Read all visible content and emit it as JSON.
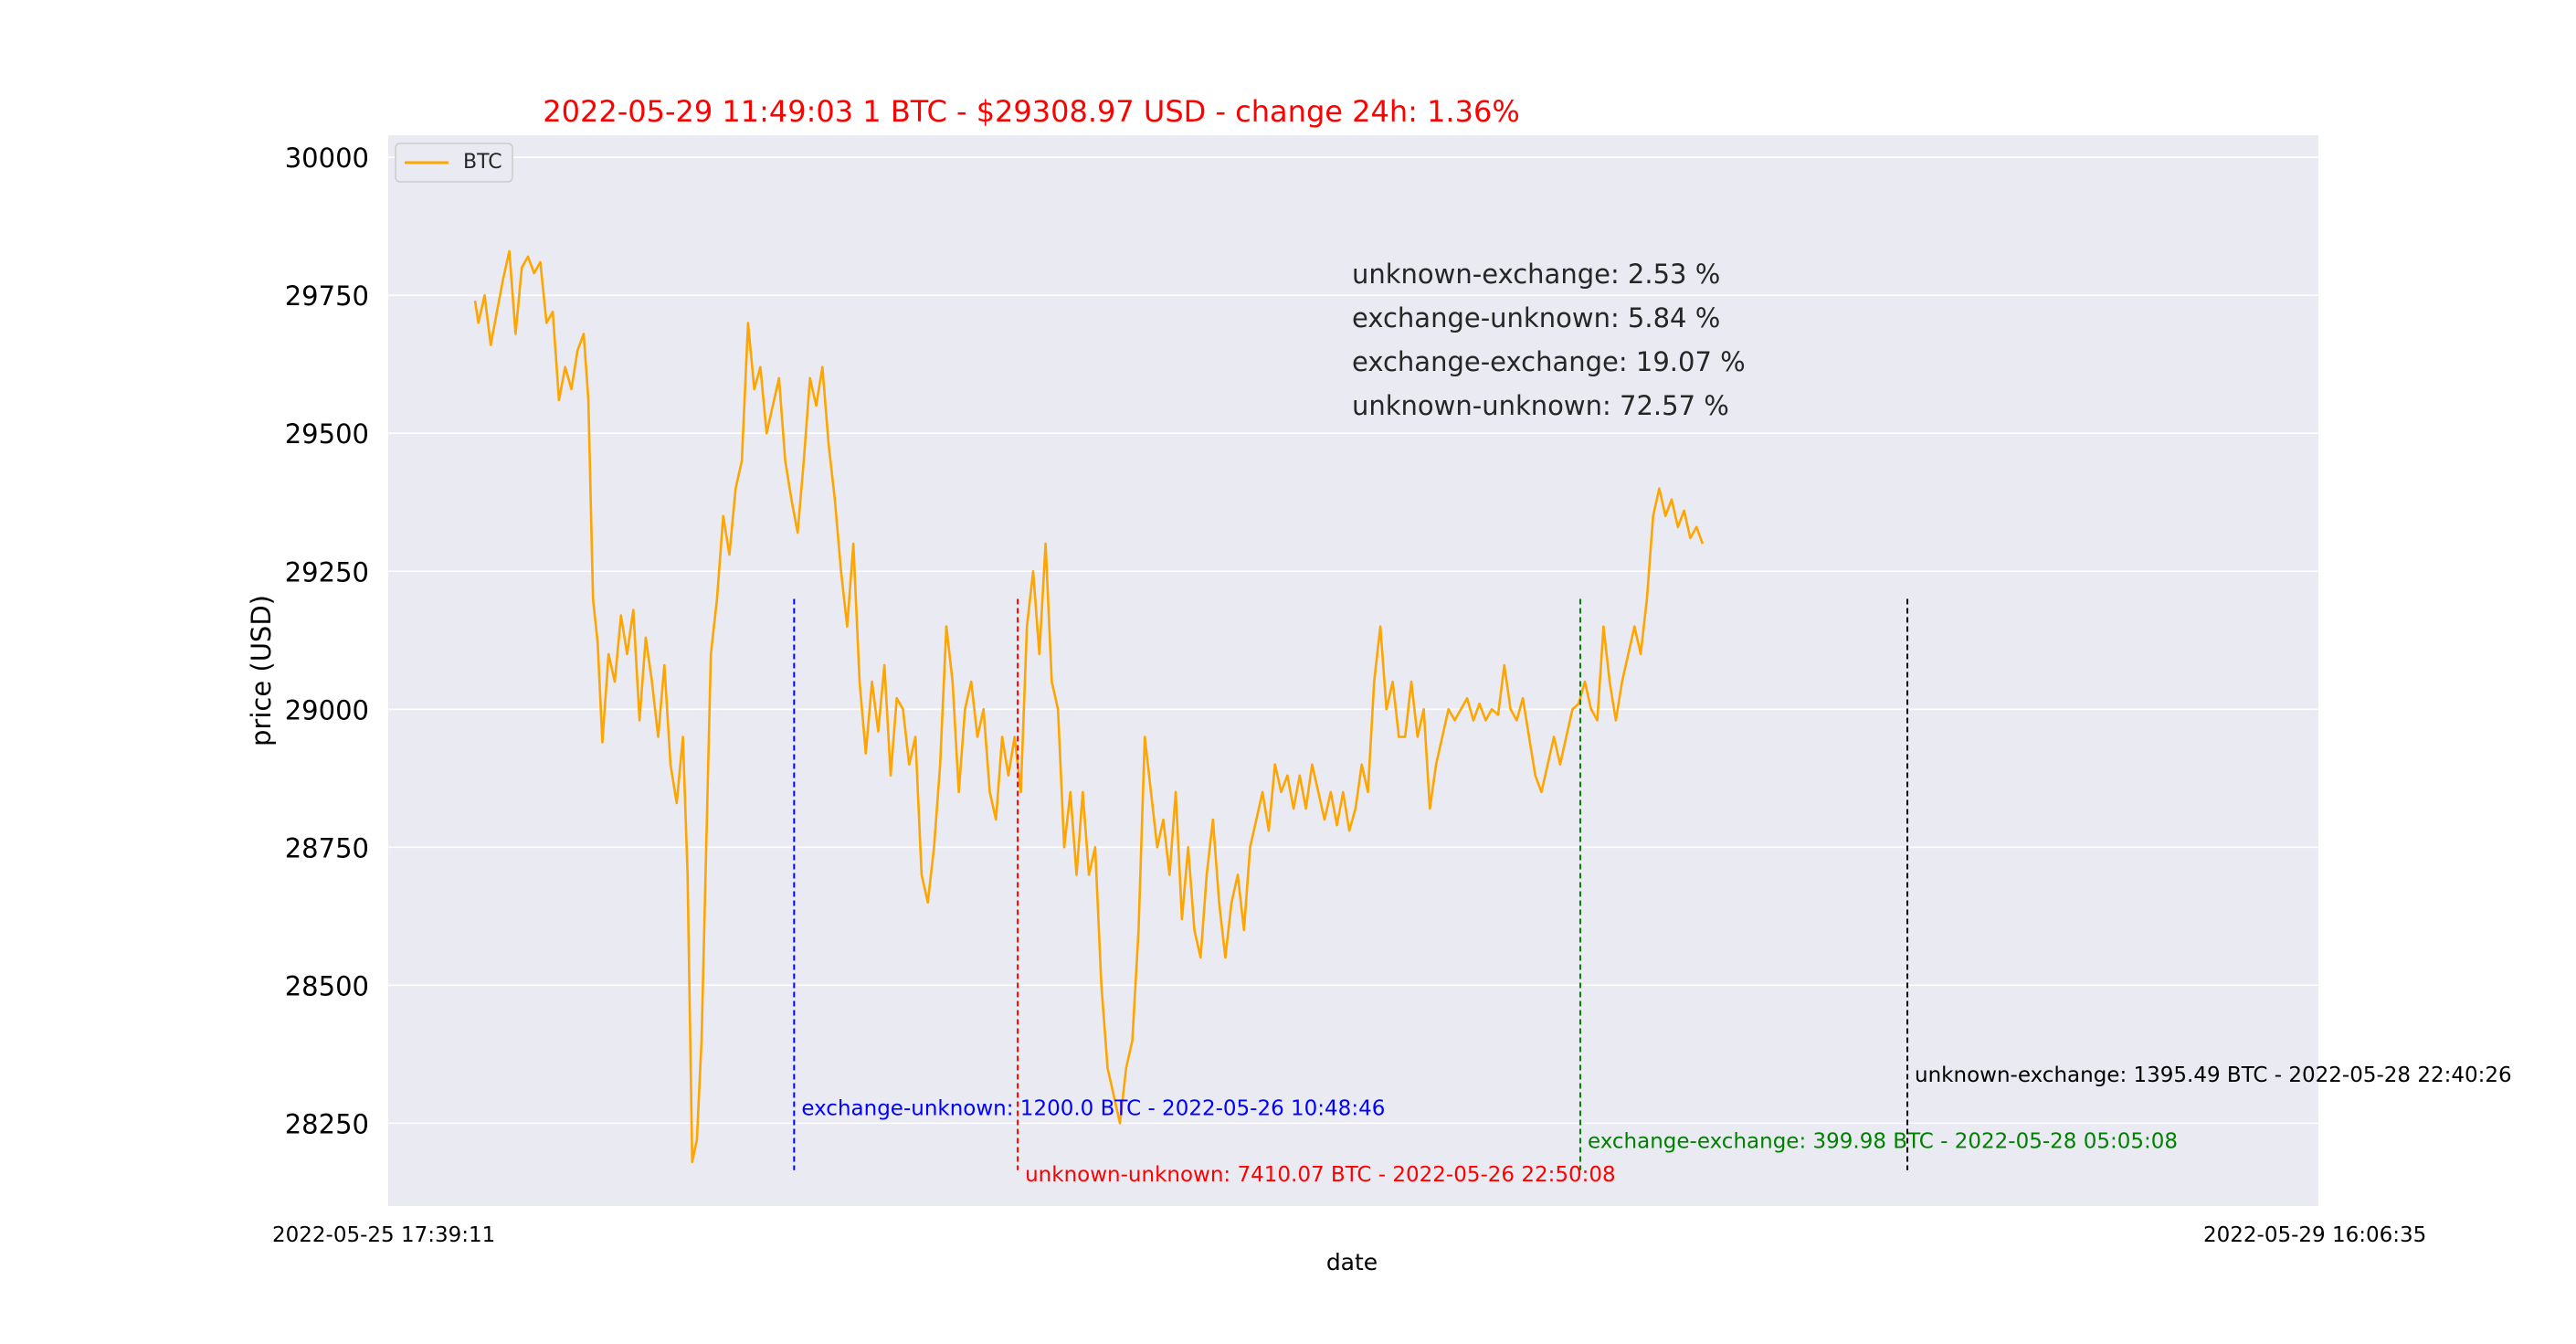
{
  "chart_data": {
    "type": "line",
    "title": "2022-05-29  11:49:03    1 BTC - $29308.97 USD - change 24h: 1.36%",
    "xlabel": "date",
    "ylabel": "price (USD)",
    "x_tick_labels": [
      "2022-05-25  17:39:11",
      "2022-05-29  16:06:35"
    ],
    "x_range": [
      "2022-05-25 17:39:11",
      "2022-05-29 16:06:35"
    ],
    "y_ticks": [
      28250,
      28500,
      28750,
      29000,
      29250,
      29500,
      29750,
      30000
    ],
    "ylim": [
      28100,
      30040
    ],
    "grid": true,
    "legend": {
      "position": "top-left",
      "entries": [
        "BTC"
      ]
    },
    "colors": {
      "line": "#FFA500",
      "plot_bg": "#EAEAF2",
      "title": "#FF0000",
      "grid": "#FFFFFF"
    },
    "series": [
      {
        "name": "BTC",
        "points": [
          [
            "2022-05-25 17:39:11",
            29740
          ],
          [
            "2022-05-25 17:50",
            29700
          ],
          [
            "2022-05-25 18:10",
            29750
          ],
          [
            "2022-05-25 18:30",
            29660
          ],
          [
            "2022-05-25 18:50",
            29720
          ],
          [
            "2022-05-25 19:10",
            29780
          ],
          [
            "2022-05-25 19:30",
            29830
          ],
          [
            "2022-05-25 19:50",
            29680
          ],
          [
            "2022-05-25 20:10",
            29800
          ],
          [
            "2022-05-25 20:30",
            29820
          ],
          [
            "2022-05-25 20:50",
            29790
          ],
          [
            "2022-05-25 21:10",
            29810
          ],
          [
            "2022-05-25 21:30",
            29700
          ],
          [
            "2022-05-25 21:50",
            29720
          ],
          [
            "2022-05-25 22:10",
            29560
          ],
          [
            "2022-05-25 22:30",
            29620
          ],
          [
            "2022-05-25 22:50",
            29580
          ],
          [
            "2022-05-25 23:10",
            29650
          ],
          [
            "2022-05-25 23:30",
            29680
          ],
          [
            "2022-05-25 23:45",
            29560
          ],
          [
            "2022-05-26 00:00",
            29200
          ],
          [
            "2022-05-26 00:15",
            29120
          ],
          [
            "2022-05-26 00:30",
            28940
          ],
          [
            "2022-05-26 00:50",
            29100
          ],
          [
            "2022-05-26 01:10",
            29050
          ],
          [
            "2022-05-26 01:30",
            29170
          ],
          [
            "2022-05-26 01:50",
            29100
          ],
          [
            "2022-05-26 02:10",
            29180
          ],
          [
            "2022-05-26 02:30",
            28980
          ],
          [
            "2022-05-26 02:50",
            29130
          ],
          [
            "2022-05-26 03:10",
            29050
          ],
          [
            "2022-05-26 03:30",
            28950
          ],
          [
            "2022-05-26 03:50",
            29080
          ],
          [
            "2022-05-26 04:10",
            28900
          ],
          [
            "2022-05-26 04:30",
            28830
          ],
          [
            "2022-05-26 04:50",
            28950
          ],
          [
            "2022-05-26 05:05",
            28700
          ],
          [
            "2022-05-26 05:20",
            28180
          ],
          [
            "2022-05-26 05:35",
            28220
          ],
          [
            "2022-05-26 05:50",
            28400
          ],
          [
            "2022-05-26 06:05",
            28750
          ],
          [
            "2022-05-26 06:20",
            29100
          ],
          [
            "2022-05-26 06:40",
            29200
          ],
          [
            "2022-05-26 07:00",
            29350
          ],
          [
            "2022-05-26 07:20",
            29280
          ],
          [
            "2022-05-26 07:40",
            29400
          ],
          [
            "2022-05-26 08:00",
            29450
          ],
          [
            "2022-05-26 08:20",
            29700
          ],
          [
            "2022-05-26 08:40",
            29580
          ],
          [
            "2022-05-26 09:00",
            29620
          ],
          [
            "2022-05-26 09:20",
            29500
          ],
          [
            "2022-05-26 09:40",
            29550
          ],
          [
            "2022-05-26 10:00",
            29600
          ],
          [
            "2022-05-26 10:20",
            29450
          ],
          [
            "2022-05-26 10:40",
            29380
          ],
          [
            "2022-05-26 11:00",
            29320
          ],
          [
            "2022-05-26 11:20",
            29450
          ],
          [
            "2022-05-26 11:40",
            29600
          ],
          [
            "2022-05-26 12:00",
            29550
          ],
          [
            "2022-05-26 12:20",
            29620
          ],
          [
            "2022-05-26 12:40",
            29480
          ],
          [
            "2022-05-26 13:00",
            29380
          ],
          [
            "2022-05-26 13:20",
            29250
          ],
          [
            "2022-05-26 13:40",
            29150
          ],
          [
            "2022-05-26 14:00",
            29300
          ],
          [
            "2022-05-26 14:20",
            29050
          ],
          [
            "2022-05-26 14:40",
            28920
          ],
          [
            "2022-05-26 15:00",
            29050
          ],
          [
            "2022-05-26 15:20",
            28960
          ],
          [
            "2022-05-26 15:40",
            29080
          ],
          [
            "2022-05-26 16:00",
            28880
          ],
          [
            "2022-05-26 16:20",
            29020
          ],
          [
            "2022-05-26 16:40",
            29000
          ],
          [
            "2022-05-26 17:00",
            28900
          ],
          [
            "2022-05-26 17:20",
            28950
          ],
          [
            "2022-05-26 17:40",
            28700
          ],
          [
            "2022-05-26 18:00",
            28650
          ],
          [
            "2022-05-26 18:20",
            28750
          ],
          [
            "2022-05-26 18:40",
            28900
          ],
          [
            "2022-05-26 19:00",
            29150
          ],
          [
            "2022-05-26 19:20",
            29050
          ],
          [
            "2022-05-26 19:40",
            28850
          ],
          [
            "2022-05-26 20:00",
            29000
          ],
          [
            "2022-05-26 20:20",
            29050
          ],
          [
            "2022-05-26 20:40",
            28950
          ],
          [
            "2022-05-26 21:00",
            29000
          ],
          [
            "2022-05-26 21:20",
            28850
          ],
          [
            "2022-05-26 21:40",
            28800
          ],
          [
            "2022-05-26 22:00",
            28950
          ],
          [
            "2022-05-26 22:20",
            28880
          ],
          [
            "2022-05-26 22:40",
            28950
          ],
          [
            "2022-05-26 23:00",
            28850
          ],
          [
            "2022-05-26 23:20",
            29150
          ],
          [
            "2022-05-26 23:40",
            29250
          ],
          [
            "2022-05-27 00:00",
            29100
          ],
          [
            "2022-05-27 00:20",
            29300
          ],
          [
            "2022-05-27 00:40",
            29050
          ],
          [
            "2022-05-27 01:00",
            29000
          ],
          [
            "2022-05-27 01:20",
            28750
          ],
          [
            "2022-05-27 01:40",
            28850
          ],
          [
            "2022-05-27 02:00",
            28700
          ],
          [
            "2022-05-27 02:20",
            28850
          ],
          [
            "2022-05-27 02:40",
            28700
          ],
          [
            "2022-05-27 03:00",
            28750
          ],
          [
            "2022-05-27 03:20",
            28500
          ],
          [
            "2022-05-27 03:40",
            28350
          ],
          [
            "2022-05-27 04:00",
            28300
          ],
          [
            "2022-05-27 04:20",
            28250
          ],
          [
            "2022-05-27 04:40",
            28350
          ],
          [
            "2022-05-27 05:00",
            28400
          ],
          [
            "2022-05-27 05:20",
            28600
          ],
          [
            "2022-05-27 05:40",
            28950
          ],
          [
            "2022-05-27 06:00",
            28850
          ],
          [
            "2022-05-27 06:20",
            28750
          ],
          [
            "2022-05-27 06:40",
            28800
          ],
          [
            "2022-05-27 07:00",
            28700
          ],
          [
            "2022-05-27 07:20",
            28850
          ],
          [
            "2022-05-27 07:40",
            28620
          ],
          [
            "2022-05-27 08:00",
            28750
          ],
          [
            "2022-05-27 08:20",
            28600
          ],
          [
            "2022-05-27 08:40",
            28550
          ],
          [
            "2022-05-27 09:00",
            28700
          ],
          [
            "2022-05-27 09:20",
            28800
          ],
          [
            "2022-05-27 09:40",
            28650
          ],
          [
            "2022-05-27 10:00",
            28550
          ],
          [
            "2022-05-27 10:20",
            28650
          ],
          [
            "2022-05-27 10:40",
            28700
          ],
          [
            "2022-05-27 11:00",
            28600
          ],
          [
            "2022-05-27 11:20",
            28750
          ],
          [
            "2022-05-27 11:40",
            28800
          ],
          [
            "2022-05-27 12:00",
            28850
          ],
          [
            "2022-05-27 12:20",
            28780
          ],
          [
            "2022-05-27 12:40",
            28900
          ],
          [
            "2022-05-27 13:00",
            28850
          ],
          [
            "2022-05-27 13:20",
            28880
          ],
          [
            "2022-05-27 13:40",
            28820
          ],
          [
            "2022-05-27 14:00",
            28880
          ],
          [
            "2022-05-27 14:20",
            28820
          ],
          [
            "2022-05-27 14:40",
            28900
          ],
          [
            "2022-05-27 15:00",
            28850
          ],
          [
            "2022-05-27 15:20",
            28800
          ],
          [
            "2022-05-27 15:40",
            28850
          ],
          [
            "2022-05-27 16:00",
            28790
          ],
          [
            "2022-05-27 16:20",
            28850
          ],
          [
            "2022-05-27 16:40",
            28780
          ],
          [
            "2022-05-27 17:00",
            28820
          ],
          [
            "2022-05-27 17:20",
            28900
          ],
          [
            "2022-05-27 17:40",
            28850
          ],
          [
            "2022-05-27 18:00",
            29050
          ],
          [
            "2022-05-27 18:20",
            29150
          ],
          [
            "2022-05-27 18:40",
            29000
          ],
          [
            "2022-05-27 19:00",
            29050
          ],
          [
            "2022-05-27 19:20",
            28950
          ],
          [
            "2022-05-27 19:40",
            28950
          ],
          [
            "2022-05-27 20:00",
            29050
          ],
          [
            "2022-05-27 20:20",
            28950
          ],
          [
            "2022-05-27 20:40",
            29000
          ],
          [
            "2022-05-27 21:00",
            28820
          ],
          [
            "2022-05-27 21:20",
            28900
          ],
          [
            "2022-05-27 21:40",
            28950
          ],
          [
            "2022-05-27 22:00",
            29000
          ],
          [
            "2022-05-27 22:20",
            28980
          ],
          [
            "2022-05-27 22:40",
            29000
          ],
          [
            "2022-05-27 23:00",
            29020
          ],
          [
            "2022-05-27 23:20",
            28980
          ],
          [
            "2022-05-27 23:40",
            29010
          ],
          [
            "2022-05-28 00:00",
            28980
          ],
          [
            "2022-05-28 00:20",
            29000
          ],
          [
            "2022-05-28 00:40",
            28990
          ],
          [
            "2022-05-28 01:00",
            29080
          ],
          [
            "2022-05-28 01:20",
            29000
          ],
          [
            "2022-05-28 01:40",
            28980
          ],
          [
            "2022-05-28 02:00",
            29020
          ],
          [
            "2022-05-28 02:20",
            28950
          ],
          [
            "2022-05-28 02:40",
            28880
          ],
          [
            "2022-05-28 03:00",
            28850
          ],
          [
            "2022-05-28 03:20",
            28900
          ],
          [
            "2022-05-28 03:40",
            28950
          ],
          [
            "2022-05-28 04:00",
            28900
          ],
          [
            "2022-05-28 04:20",
            28950
          ],
          [
            "2022-05-28 04:40",
            29000
          ],
          [
            "2022-05-28 05:00",
            29010
          ],
          [
            "2022-05-28 05:20",
            29050
          ],
          [
            "2022-05-28 05:40",
            29000
          ],
          [
            "2022-05-28 06:00",
            28980
          ],
          [
            "2022-05-28 06:20",
            29150
          ],
          [
            "2022-05-28 06:40",
            29050
          ],
          [
            "2022-05-28 07:00",
            28980
          ],
          [
            "2022-05-28 07:20",
            29050
          ],
          [
            "2022-05-28 07:40",
            29100
          ],
          [
            "2022-05-28 08:00",
            29150
          ],
          [
            "2022-05-28 08:20",
            29100
          ],
          [
            "2022-05-28 08:40",
            29200
          ],
          [
            "2022-05-28 09:00",
            29350
          ],
          [
            "2022-05-28 09:20",
            29400
          ],
          [
            "2022-05-28 09:40",
            29350
          ],
          [
            "2022-05-28 10:00",
            29380
          ],
          [
            "2022-05-28 10:20",
            29330
          ],
          [
            "2022-05-28 10:40",
            29360
          ],
          [
            "2022-05-28 11:00",
            29310
          ],
          [
            "2022-05-28 11:20",
            29330
          ],
          [
            "2022-05-28 11:40",
            29300
          ]
        ]
      }
    ],
    "annotations": [
      {
        "kind": "summary",
        "text": "unknown-exchange: 2.53 %"
      },
      {
        "kind": "summary",
        "text": "exchange-unknown: 5.84 %"
      },
      {
        "kind": "summary",
        "text": "exchange-exchange: 19.07 %"
      },
      {
        "kind": "summary",
        "text": "unknown-unknown: 72.57 %"
      }
    ],
    "markers": [
      {
        "label": "exchange-unknown:  1200.0 BTC - 2022-05-26 10:48:46",
        "color": "#0000FF"
      },
      {
        "label": "unknown-unknown:  7410.07 BTC - 2022-05-26 22:50:08",
        "color": "#FF0000"
      },
      {
        "label": "exchange-exchange:  399.98 BTC - 2022-05-28 05:05:08",
        "color": "#008000"
      },
      {
        "label": "unknown-exchange:  1395.49 BTC - 2022-05-28 22:40:26",
        "color": "#000000"
      }
    ]
  }
}
